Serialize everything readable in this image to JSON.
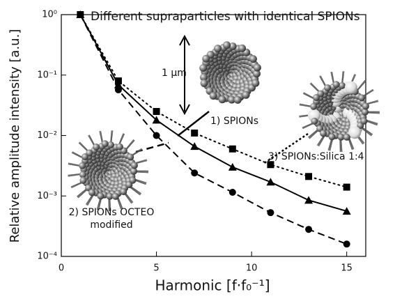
{
  "chart_data": {
    "type": "line",
    "title": "Different supraparticles with identical SPIONs",
    "x_label": "Harmonic [f·f₀⁻¹]",
    "y_label": "Relative amplitude intensity [a.u.]",
    "annotations": [
      "1 µm"
    ],
    "x": [
      1,
      3,
      5,
      7,
      9,
      11,
      13,
      15
    ],
    "series": [
      {
        "name": "1) SPIONs",
        "color": "#000000",
        "line_style": "solid",
        "marker": "triangle",
        "values": [
          1.0,
          0.069,
          0.018,
          0.0066,
          0.003,
          0.0017,
          0.00085,
          0.00056
        ]
      },
      {
        "name": "2) SPIONs OCTEO modified",
        "color": "#000000",
        "line_style": "dashed",
        "marker": "circle",
        "values": [
          1.0,
          0.057,
          0.01,
          0.0024,
          0.00115,
          0.00053,
          0.00028,
          0.00016
        ]
      },
      {
        "name": "3) SPIONs:Silica 1:4",
        "color": "#000000",
        "line_style": "dotted",
        "marker": "square",
        "values": [
          1.0,
          0.08,
          0.025,
          0.011,
          0.006,
          0.0033,
          0.0021,
          0.0014
        ]
      }
    ],
    "xlim": [
      0,
      16
    ],
    "xticks": [
      0,
      5,
      10,
      15
    ],
    "ylim": [
      0.0001,
      1
    ],
    "ylog": true,
    "yticks": [
      {
        "value": 0.0001,
        "label": "10⁻⁴"
      },
      {
        "value": 0.001,
        "label": "10⁻³"
      },
      {
        "value": 0.01,
        "label": "10⁻²"
      },
      {
        "value": 0.1,
        "label": "10⁻¹"
      },
      {
        "value": 1,
        "label": "10⁰"
      }
    ]
  }
}
